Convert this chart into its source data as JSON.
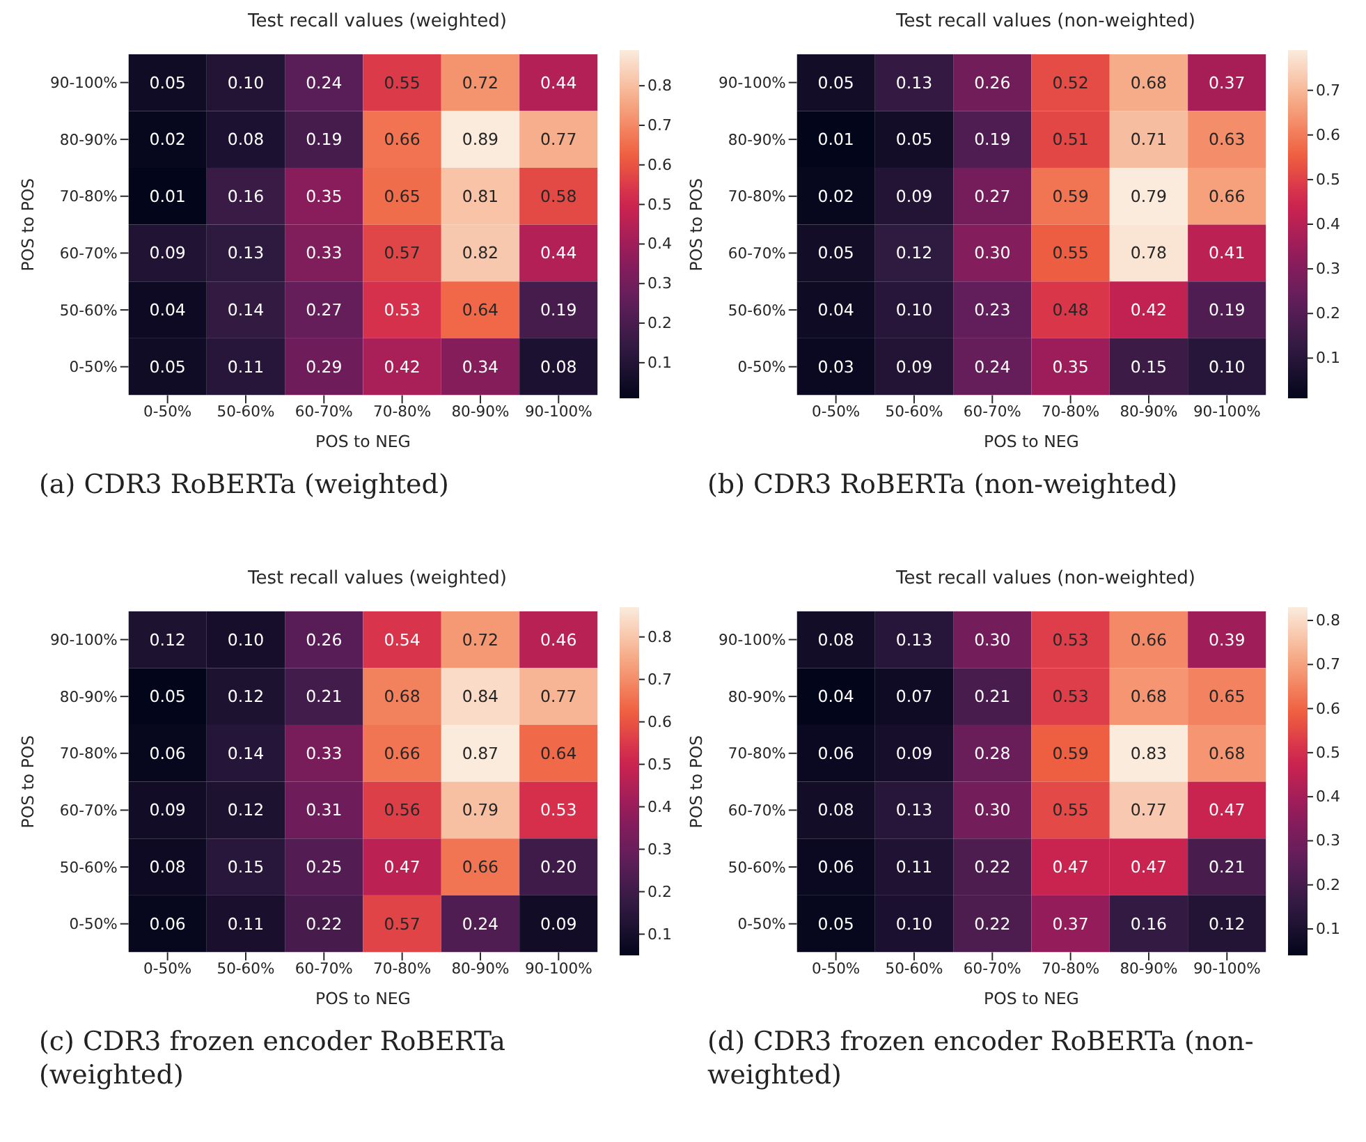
{
  "chart_data": [
    {
      "type": "heatmap",
      "title": "Test recall values (weighted)",
      "xlabel": "POS to NEG",
      "ylabel": "POS to POS",
      "categories": [
        "0-50%",
        "50-60%",
        "60-70%",
        "70-80%",
        "80-90%",
        "90-100%"
      ],
      "y_categories": [
        "90-100%",
        "80-90%",
        "70-80%",
        "60-70%",
        "50-60%",
        "0-50%"
      ],
      "cells": [
        [
          0.05,
          0.1,
          0.24,
          0.55,
          0.72,
          0.44
        ],
        [
          0.02,
          0.08,
          0.19,
          0.66,
          0.89,
          0.77
        ],
        [
          0.01,
          0.16,
          0.35,
          0.65,
          0.81,
          0.58
        ],
        [
          0.09,
          0.13,
          0.33,
          0.57,
          0.82,
          0.44
        ],
        [
          0.04,
          0.14,
          0.27,
          0.53,
          0.64,
          0.19
        ],
        [
          0.05,
          0.11,
          0.29,
          0.42,
          0.34,
          0.08
        ]
      ],
      "cell_labels": [
        [
          "0.05",
          "0.10",
          "0.24",
          "0.55",
          "0.72",
          "0.44"
        ],
        [
          "0.02",
          "0.08",
          "0.19",
          "0.66",
          "0.89",
          "0.77"
        ],
        [
          "0.01",
          "0.16",
          "0.35",
          "0.65",
          "0.81",
          "0.58"
        ],
        [
          "0.09",
          "0.13",
          "0.33",
          "0.57",
          "0.82",
          "0.44"
        ],
        [
          "0.04",
          "0.14",
          "0.27",
          "0.53",
          "0.64",
          "0.19"
        ],
        [
          "0.05",
          "0.11",
          "0.29",
          "0.42",
          "0.34",
          "0.08"
        ]
      ],
      "clim": [
        0.01,
        0.89
      ],
      "cticks": [
        0.1,
        0.2,
        0.3,
        0.4,
        0.5,
        0.6,
        0.7,
        0.8
      ],
      "data_labels": true,
      "annotations": [
        "(a) CDR3 RoBERTa (weighted)"
      ]
    },
    {
      "type": "heatmap",
      "title": "Test recall values (non-weighted)",
      "xlabel": "POS to NEG",
      "ylabel": "POS to POS",
      "categories": [
        "0-50%",
        "50-60%",
        "60-70%",
        "70-80%",
        "80-90%",
        "90-100%"
      ],
      "y_categories": [
        "90-100%",
        "80-90%",
        "70-80%",
        "60-70%",
        "50-60%",
        "0-50%"
      ],
      "cells": [
        [
          0.05,
          0.13,
          0.26,
          0.52,
          0.68,
          0.37
        ],
        [
          0.01,
          0.05,
          0.19,
          0.51,
          0.71,
          0.63
        ],
        [
          0.02,
          0.09,
          0.27,
          0.59,
          0.79,
          0.66
        ],
        [
          0.05,
          0.12,
          0.3,
          0.55,
          0.78,
          0.41
        ],
        [
          0.04,
          0.1,
          0.23,
          0.48,
          0.42,
          0.19
        ],
        [
          0.03,
          0.09,
          0.24,
          0.35,
          0.15,
          0.1
        ]
      ],
      "cell_labels": [
        [
          "0.05",
          "0.13",
          "0.26",
          "0.52",
          "0.68",
          "0.37"
        ],
        [
          "0.01",
          "0.05",
          "0.19",
          "0.51",
          "0.71",
          "0.63"
        ],
        [
          "0.02",
          "0.09",
          "0.27",
          "0.59",
          "0.79",
          "0.66"
        ],
        [
          "0.05",
          "0.12",
          "0.30",
          "0.55",
          "0.78",
          "0.41"
        ],
        [
          "0.04",
          "0.10",
          "0.23",
          "0.48",
          "0.42",
          "0.19"
        ],
        [
          "0.03",
          "0.09",
          "0.24",
          "0.35",
          "0.15",
          "0.10"
        ]
      ],
      "clim": [
        0.01,
        0.79
      ],
      "cticks": [
        0.1,
        0.2,
        0.3,
        0.4,
        0.5,
        0.6,
        0.7
      ],
      "data_labels": true,
      "annotations": [
        "(b) CDR3 RoBERTa (non-weighted)"
      ]
    },
    {
      "type": "heatmap",
      "title": "Test recall values (weighted)",
      "xlabel": "POS to NEG",
      "ylabel": "POS to POS",
      "categories": [
        "0-50%",
        "50-60%",
        "60-70%",
        "70-80%",
        "80-90%",
        "90-100%"
      ],
      "y_categories": [
        "90-100%",
        "80-90%",
        "70-80%",
        "60-70%",
        "50-60%",
        "0-50%"
      ],
      "cells": [
        [
          0.12,
          0.1,
          0.26,
          0.54,
          0.72,
          0.46
        ],
        [
          0.05,
          0.12,
          0.21,
          0.68,
          0.84,
          0.77
        ],
        [
          0.06,
          0.14,
          0.33,
          0.66,
          0.87,
          0.64
        ],
        [
          0.09,
          0.12,
          0.31,
          0.56,
          0.79,
          0.53
        ],
        [
          0.08,
          0.15,
          0.25,
          0.47,
          0.66,
          0.2
        ],
        [
          0.06,
          0.11,
          0.22,
          0.57,
          0.24,
          0.09
        ]
      ],
      "cell_labels": [
        [
          "0.12",
          "0.10",
          "0.26",
          "0.54",
          "0.72",
          "0.46"
        ],
        [
          "0.05",
          "0.12",
          "0.21",
          "0.68",
          "0.84",
          "0.77"
        ],
        [
          "0.06",
          "0.14",
          "0.33",
          "0.66",
          "0.87",
          "0.64"
        ],
        [
          "0.09",
          "0.12",
          "0.31",
          "0.56",
          "0.79",
          "0.53"
        ],
        [
          "0.08",
          "0.15",
          "0.25",
          "0.47",
          "0.66",
          "0.20"
        ],
        [
          "0.06",
          "0.11",
          "0.22",
          "0.57",
          "0.24",
          "0.09"
        ]
      ],
      "clim": [
        0.05,
        0.87
      ],
      "cticks": [
        0.1,
        0.2,
        0.3,
        0.4,
        0.5,
        0.6,
        0.7,
        0.8
      ],
      "data_labels": true,
      "annotations": [
        "(c) CDR3 frozen encoder RoBERTa (weighted)"
      ]
    },
    {
      "type": "heatmap",
      "title": "Test recall values (non-weighted)",
      "xlabel": "POS to NEG",
      "ylabel": "POS to POS",
      "categories": [
        "0-50%",
        "50-60%",
        "60-70%",
        "70-80%",
        "80-90%",
        "90-100%"
      ],
      "y_categories": [
        "90-100%",
        "80-90%",
        "70-80%",
        "60-70%",
        "50-60%",
        "0-50%"
      ],
      "cells": [
        [
          0.08,
          0.13,
          0.3,
          0.53,
          0.66,
          0.39
        ],
        [
          0.04,
          0.07,
          0.21,
          0.53,
          0.68,
          0.65
        ],
        [
          0.06,
          0.09,
          0.28,
          0.59,
          0.83,
          0.68
        ],
        [
          0.08,
          0.13,
          0.3,
          0.55,
          0.77,
          0.47
        ],
        [
          0.06,
          0.11,
          0.22,
          0.47,
          0.47,
          0.21
        ],
        [
          0.05,
          0.1,
          0.22,
          0.37,
          0.16,
          0.12
        ]
      ],
      "cell_labels": [
        [
          "0.08",
          "0.13",
          "0.30",
          "0.53",
          "0.66",
          "0.39"
        ],
        [
          "0.04",
          "0.07",
          "0.21",
          "0.53",
          "0.68",
          "0.65"
        ],
        [
          "0.06",
          "0.09",
          "0.28",
          "0.59",
          "0.83",
          "0.68"
        ],
        [
          "0.08",
          "0.13",
          "0.30",
          "0.55",
          "0.77",
          "0.47"
        ],
        [
          "0.06",
          "0.11",
          "0.22",
          "0.47",
          "0.47",
          "0.21"
        ],
        [
          "0.05",
          "0.10",
          "0.22",
          "0.37",
          "0.16",
          "0.12"
        ]
      ],
      "clim": [
        0.04,
        0.83
      ],
      "cticks": [
        0.1,
        0.2,
        0.3,
        0.4,
        0.5,
        0.6,
        0.7,
        0.8
      ],
      "data_labels": true,
      "annotations": [
        "(d) CDR3 frozen encoder RoBERTa (non-weighted)"
      ]
    }
  ]
}
